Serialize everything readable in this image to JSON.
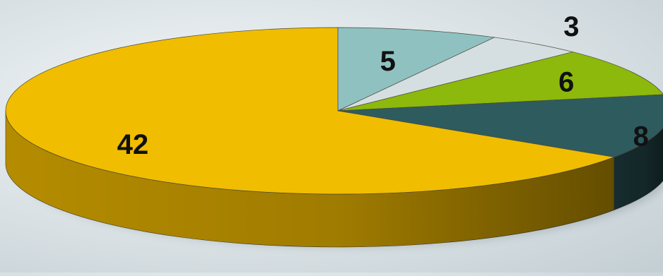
{
  "chart_data": {
    "type": "pie",
    "style": "3d",
    "title": "",
    "legend": "none",
    "slices": [
      {
        "value": 5,
        "label": "5",
        "color": "#8fc1c1",
        "side_color": "#6a9a9b"
      },
      {
        "value": 3,
        "label": "3",
        "color": "#d5dfe1",
        "side_color": "#a9b4b7"
      },
      {
        "value": 6,
        "label": "6",
        "color": "#8cb90b",
        "side_color": "#5f8006"
      },
      {
        "value": 8,
        "label": "8",
        "color": "#2e5b5e",
        "side_color": "#162c2e"
      },
      {
        "value": 42,
        "label": "42",
        "color": "#f0bd00",
        "side_color": "#b58c00"
      }
    ]
  }
}
